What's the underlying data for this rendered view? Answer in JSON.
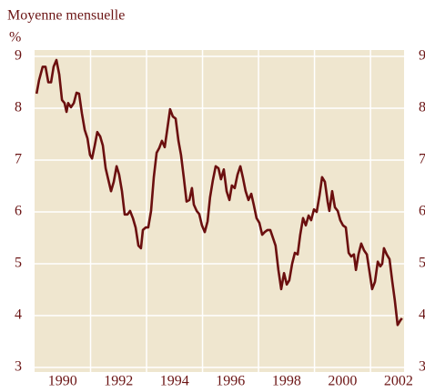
{
  "chart_data": {
    "type": "line",
    "title": "Moyenne mensuelle",
    "y_label": "%",
    "xlim": [
      1989,
      2002.2
    ],
    "xticks": [
      1990,
      1992,
      1994,
      1996,
      1998,
      2000,
      2002
    ],
    "x_grid_lines": [
      1991,
      1993,
      1995,
      1997,
      1999,
      2001
    ],
    "ylim": [
      3,
      9
    ],
    "yticks": [
      3,
      4,
      5,
      6,
      7,
      8,
      9
    ],
    "y2lim": [
      3,
      9
    ],
    "y2ticks": [
      3,
      4,
      5,
      6,
      7,
      8,
      9
    ],
    "grid": true,
    "x": [
      1989.07,
      1989.16,
      1989.29,
      1989.39,
      1989.49,
      1989.59,
      1989.68,
      1989.78,
      1989.88,
      1989.98,
      1990.07,
      1990.14,
      1990.2,
      1990.3,
      1990.4,
      1990.5,
      1990.59,
      1990.69,
      1990.79,
      1990.89,
      1990.98,
      1991.05,
      1991.15,
      1991.24,
      1991.34,
      1991.44,
      1991.54,
      1991.63,
      1991.73,
      1991.83,
      1991.93,
      1992.02,
      1992.12,
      1992.22,
      1992.32,
      1992.41,
      1992.51,
      1992.61,
      1992.71,
      1992.8,
      1992.87,
      1992.97,
      1993.06,
      1993.16,
      1993.26,
      1993.36,
      1993.45,
      1993.55,
      1993.65,
      1993.75,
      1993.84,
      1993.94,
      1994.04,
      1994.14,
      1994.23,
      1994.33,
      1994.43,
      1994.53,
      1994.62,
      1994.69,
      1994.79,
      1994.88,
      1994.98,
      1995.08,
      1995.18,
      1995.27,
      1995.37,
      1995.47,
      1995.57,
      1995.66,
      1995.76,
      1995.86,
      1995.96,
      1996.05,
      1996.15,
      1996.25,
      1996.35,
      1996.44,
      1996.54,
      1996.64,
      1996.74,
      1996.83,
      1996.93,
      1997.03,
      1997.13,
      1997.22,
      1997.32,
      1997.42,
      1997.52,
      1997.61,
      1997.71,
      1997.81,
      1997.91,
      1998.01,
      1998.1,
      1998.2,
      1998.3,
      1998.4,
      1998.49,
      1998.59,
      1998.69,
      1998.79,
      1998.88,
      1998.98,
      1999.08,
      1999.18,
      1999.27,
      1999.37,
      1999.47,
      1999.53,
      1999.63,
      1999.73,
      1999.83,
      1999.92,
      2000.02,
      2000.12,
      2000.22,
      2000.31,
      2000.41,
      2000.48,
      2000.57,
      2000.67,
      2000.77,
      2000.87,
      2000.96,
      2001.06,
      2001.16,
      2001.26,
      2001.35,
      2001.42,
      2001.48,
      2001.58,
      2001.68,
      2001.78,
      2001.87,
      2001.97,
      2002.07,
      2002.13
    ],
    "series": [
      {
        "color": "#6b0f0f",
        "values": [
          8.28,
          8.54,
          8.8,
          8.8,
          8.5,
          8.5,
          8.8,
          8.93,
          8.65,
          8.16,
          8.1,
          7.93,
          8.1,
          8.02,
          8.1,
          8.3,
          8.28,
          7.9,
          7.58,
          7.42,
          7.1,
          7.03,
          7.28,
          7.54,
          7.46,
          7.28,
          6.84,
          6.63,
          6.4,
          6.58,
          6.88,
          6.72,
          6.4,
          5.95,
          5.95,
          6.02,
          5.88,
          5.7,
          5.35,
          5.3,
          5.65,
          5.7,
          5.7,
          6.02,
          6.67,
          7.14,
          7.23,
          7.37,
          7.25,
          7.63,
          7.98,
          7.84,
          7.8,
          7.37,
          7.1,
          6.67,
          6.2,
          6.23,
          6.46,
          6.14,
          6.02,
          5.96,
          5.74,
          5.61,
          5.82,
          6.28,
          6.61,
          6.88,
          6.84,
          6.63,
          6.82,
          6.4,
          6.23,
          6.51,
          6.46,
          6.72,
          6.88,
          6.67,
          6.4,
          6.23,
          6.35,
          6.14,
          5.88,
          5.79,
          5.56,
          5.61,
          5.65,
          5.65,
          5.49,
          5.35,
          4.88,
          4.51,
          4.82,
          4.6,
          4.68,
          5.0,
          5.21,
          5.18,
          5.56,
          5.88,
          5.74,
          5.93,
          5.84,
          6.05,
          6.0,
          6.32,
          6.67,
          6.58,
          6.2,
          6.02,
          6.4,
          6.09,
          6.02,
          5.84,
          5.74,
          5.7,
          5.21,
          5.14,
          5.18,
          4.88,
          5.18,
          5.39,
          5.26,
          5.18,
          4.86,
          4.51,
          4.65,
          5.04,
          4.95,
          5.0,
          5.3,
          5.18,
          5.09,
          4.65,
          4.3,
          3.82,
          3.91,
          3.95
        ]
      }
    ]
  }
}
